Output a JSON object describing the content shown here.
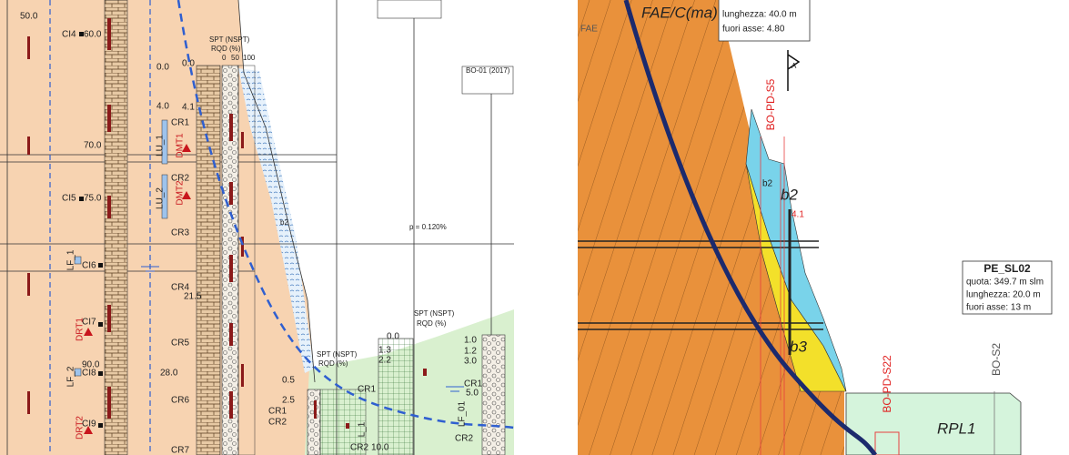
{
  "left_section": {
    "elev_50": "50.0",
    "ci4": "CI4",
    "elev_60": "60.0",
    "elev_70": "70.0",
    "ci5": "CI5",
    "elev_75": "75.0",
    "ci6": "CI6",
    "ci7": "CI7",
    "ci8": "CI8",
    "elev_90": "90.0",
    "ci9": "CI9",
    "lu1": "LU_1",
    "lu2": "LU_2",
    "dmt1": "DMT1",
    "dmt2": "DMT2",
    "lf1": "LF_1",
    "lf2": "LF_2",
    "drt1": "DRT1",
    "drt2": "DRT2",
    "level_0": "0.0",
    "level_4": "4.0",
    "level_28": "28.0",
    "top_0": "0.0",
    "depth_41": "4.1",
    "depth_215": "21.5",
    "spt_header": "SPT (NSPT)",
    "rqd_header": "RQD (%)",
    "scale_0": "0",
    "scale_50": "50",
    "scale_100": "100",
    "cr1": "CR1",
    "cr2": "CR2",
    "cr3": "CR3",
    "cr4": "CR4",
    "cr5": "CR5",
    "cr6": "CR6",
    "cr7": "CR7",
    "layer_b2": "b2",
    "slope": "p = 0.120%",
    "borehole_id": "BO-01 (2017)",
    "lower_cr1": "CR1",
    "lower_cr2": "CR2",
    "lower_cr1b": "CR1",
    "lower_cr2b": "CR2",
    "lower_cr1c": "CR1",
    "lower_cr2c": "CR2",
    "lower_l1": "L_1",
    "lower_lf01": "LF_01",
    "val_05": "0.5",
    "val_25": "2.5",
    "val_00": "0.0",
    "val_13": "1.3",
    "val_22": "2.2",
    "val_10": "1.0",
    "val_12": "1.2",
    "val_30": "3.0",
    "val_50": "5.0",
    "val_100": "10.0",
    "spt_header_2": "SPT (NSPT)",
    "rqd_header_2": "RQD (%)",
    "spt_header_3": "SPT (NSPT)",
    "rqd_header_3": "RQD (%)"
  },
  "right_section": {
    "unit_fae_cma": "FAE/C(ma)",
    "unit_fae": "FAE",
    "box1_length": "lunghezza:  40.0  m",
    "box1_offset": "fuori asse:   4.80",
    "section_arrow": "A",
    "bh_s5": "BO-PD-S5",
    "layer_b2_a": "b2",
    "layer_b2_b": "b2",
    "depth_41": "4.1",
    "layer_b3": "b3",
    "box2_title": "PE_SL02",
    "box2_elev": "quota:  349.7  m slm",
    "box2_length": "lunghezza:  20.0  m",
    "box2_offset": "fuori asse:   13 m",
    "bh_s2": "BO-S2",
    "bh_s22": "BO-PD-S22",
    "unit_rpl1": "RPL1"
  }
}
